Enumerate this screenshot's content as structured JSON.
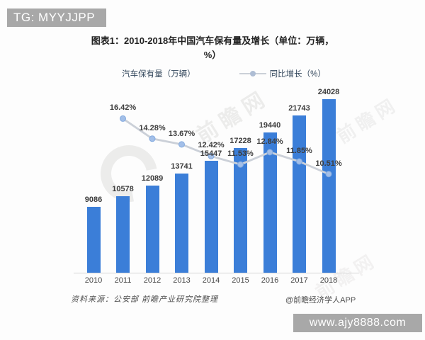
{
  "overlays": {
    "tg_banner": "TG: MYYJJPP",
    "site_banner": "www.ajy8888.com"
  },
  "chart": {
    "title": "图表1：2010-2018年中国汽车保有量及增长（单位：万辆，%）",
    "source_note": "资料来源：公安部 前瞻产业研究院整理",
    "credit": "@前瞻经济学人APP",
    "watermark": "前瞻网"
  },
  "chart_data": {
    "type": "bar+line",
    "title": "图表1：2010-2018年中国汽车保有量及增长（单位：万辆，%）",
    "categories": [
      "2010",
      "2011",
      "2012",
      "2013",
      "2014",
      "2015",
      "2016",
      "2017",
      "2018"
    ],
    "series": [
      {
        "name": "汽车保有量（万辆）",
        "type": "bar",
        "color": "#3b7ed8",
        "values": [
          9086,
          10578,
          12089,
          13741,
          15447,
          17228,
          19440,
          21743,
          24028
        ]
      },
      {
        "name": "同比增长（%）",
        "type": "line",
        "color": "#cbd0d8",
        "marker_fill": "#a3bfe8",
        "marker_stroke": "#83aadf",
        "values": [
          null,
          16.42,
          14.28,
          13.67,
          12.42,
          11.53,
          12.84,
          11.85,
          10.51
        ]
      }
    ],
    "value_labels_shown": true,
    "grid": false,
    "legend_position": "top",
    "xlabel": "",
    "ylabel": "",
    "left_axis_hidden": true,
    "right_axis_hidden": true
  }
}
